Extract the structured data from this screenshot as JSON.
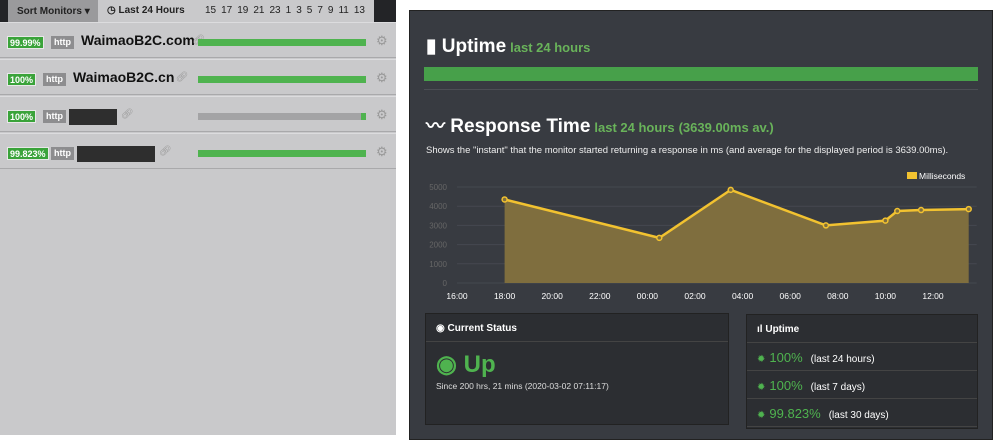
{
  "left": {
    "sort_label": "Sort Monitors",
    "range_label": "Last 24 Hours",
    "hours": [
      "15",
      "17",
      "19",
      "21",
      "23",
      "1",
      "3",
      "5",
      "7",
      "9",
      "11",
      "13"
    ],
    "monitors": [
      {
        "uptime": "99.99%",
        "type": "http",
        "name": "WaimaoB2C.com",
        "bar": "green"
      },
      {
        "uptime": "100%",
        "type": "http",
        "name": "WaimaoB2C.cn",
        "bar": "green"
      },
      {
        "uptime": "100%",
        "type": "http",
        "name": "",
        "bar": "grey"
      },
      {
        "uptime": "99.823%",
        "type": "http",
        "name": "",
        "bar": "green"
      }
    ]
  },
  "uptime_section": {
    "title": "Uptime",
    "subtitle": "last 24 hours",
    "percent": 100
  },
  "response": {
    "title": "Response Time",
    "subtitle": "last 24 hours",
    "average": "(3639.00ms av.)",
    "description": "Shows the \"instant\" that the monitor started returning a response in ms (and average for the displayed period is 3639.00ms)."
  },
  "chart_data": {
    "type": "area",
    "legend": "Milliseconds",
    "legend_position": "top-right",
    "x": [
      "18:00",
      "00:30",
      "03:30",
      "07:30",
      "10:00",
      "10:30",
      "11:30",
      "13:30"
    ],
    "values": [
      4350,
      2350,
      4850,
      3000,
      3250,
      3750,
      3800,
      3850
    ],
    "xticks": [
      "16:00",
      "18:00",
      "20:00",
      "22:00",
      "00:00",
      "02:00",
      "04:00",
      "06:00",
      "08:00",
      "10:00",
      "12:00"
    ],
    "yticks": [
      "0",
      "1000",
      "2000",
      "3000",
      "4000",
      "5000"
    ],
    "ylim": [
      0,
      6000
    ],
    "grid": true,
    "colors": {
      "line": "#f2c230",
      "fill": "#7f6e3e"
    }
  },
  "current_status": {
    "title": "Current Status",
    "status": "Up",
    "since": "Since 200 hrs, 21 mins (2020-03-02 07:11:17)"
  },
  "uptime_panel": {
    "title": "Uptime",
    "rows": [
      {
        "value": "100%",
        "period": "(last 24 hours)"
      },
      {
        "value": "100%",
        "period": "(last 7 days)"
      },
      {
        "value": "99.823%",
        "period": "(last 30 days)"
      }
    ]
  }
}
